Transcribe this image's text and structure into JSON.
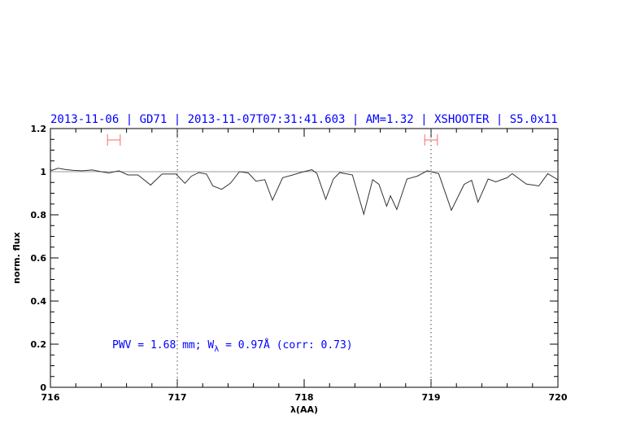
{
  "chart_data": {
    "type": "line",
    "title": "2013-11-06 | GD71 | 2013-11-07T07:31:41.603 | AM=1.32 | XSHOOTER | S5.0x11",
    "xlabel": "λ(AA)",
    "ylabel": "norm. flux",
    "xlim": [
      716,
      720
    ],
    "ylim": [
      0,
      1.2
    ],
    "x_ticks": [
      "716",
      "717",
      "718",
      "719",
      "720"
    ],
    "y_ticks": [
      "0",
      "0.2",
      "0.4",
      "0.6",
      "0.8",
      "1",
      "1.2"
    ],
    "reference_line": 1.0,
    "vertical_dotted_lines": [
      717,
      719
    ],
    "ranges": [
      [
        716.45,
        716.55
      ],
      [
        718.95,
        719.05
      ]
    ],
    "annotation": {
      "prefix": "PWV = 1.68 mm; W",
      "subscript": "λ",
      "suffix": " = 0.97Å (corr: 0.73)"
    },
    "colors": {
      "spectrum": "#000000",
      "reference": "#d98a80",
      "ranges": "#ff6666",
      "text": "#0000ff"
    },
    "series": [
      {
        "x": [
          716.0,
          716.01,
          716.06,
          716.12,
          716.18,
          716.25,
          716.33,
          716.4,
          716.46,
          716.54,
          716.61,
          716.69,
          716.79,
          716.88,
          716.99,
          717.06,
          717.11,
          717.17,
          717.23,
          717.28,
          717.35,
          717.42,
          717.49,
          717.56,
          717.62,
          717.69,
          717.75,
          717.83,
          717.91,
          717.97,
          718.06,
          718.1,
          718.17,
          718.23,
          718.28,
          718.38,
          718.47,
          718.54,
          718.59,
          718.65,
          718.68,
          718.73,
          718.81,
          718.89,
          718.97,
          719.06,
          719.16,
          719.26,
          719.32,
          719.37,
          719.45,
          719.51,
          719.6,
          719.64,
          719.75,
          719.85,
          719.92,
          719.99,
          720.0
        ],
        "y": [
          1.01,
          1.006,
          1.016,
          1.01,
          1.006,
          1.004,
          1.008,
          1.0,
          0.994,
          1.004,
          0.985,
          0.985,
          0.938,
          0.989,
          0.989,
          0.946,
          0.979,
          0.996,
          0.989,
          0.934,
          0.918,
          0.947,
          1.0,
          0.994,
          0.956,
          0.963,
          0.868,
          0.972,
          0.985,
          0.996,
          1.009,
          0.992,
          0.872,
          0.966,
          0.996,
          0.985,
          0.803,
          0.963,
          0.941,
          0.84,
          0.888,
          0.825,
          0.966,
          0.979,
          1.004,
          0.991,
          0.821,
          0.941,
          0.96,
          0.859,
          0.966,
          0.953,
          0.972,
          0.991,
          0.943,
          0.934,
          0.991,
          0.966,
          0.96
        ]
      }
    ]
  }
}
